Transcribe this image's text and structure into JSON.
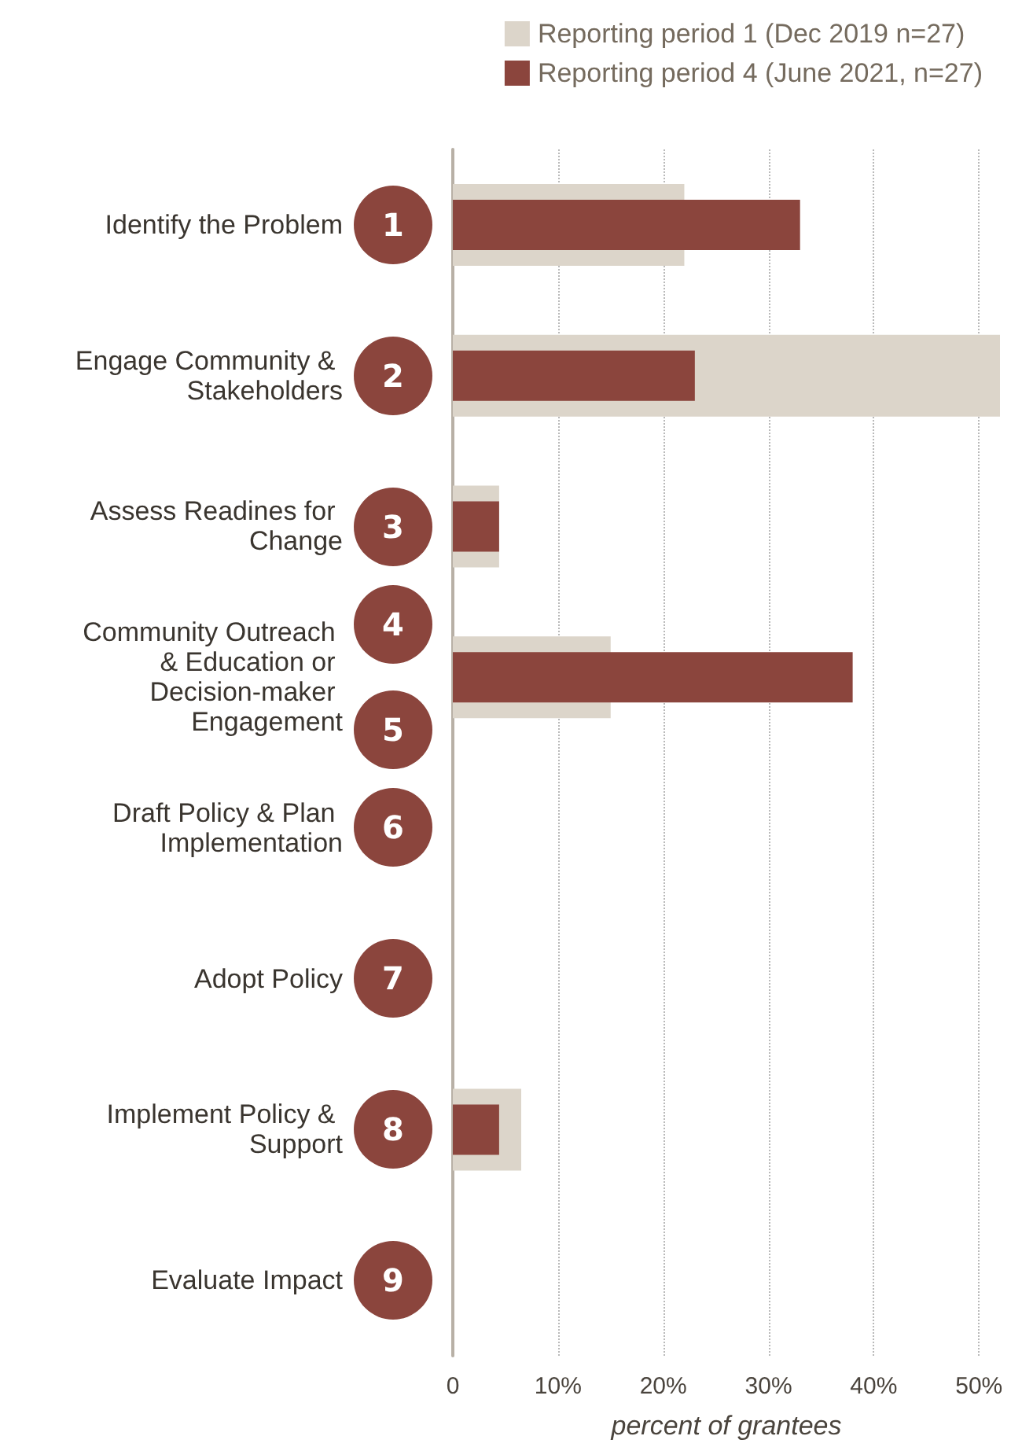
{
  "chart_data": {
    "type": "bar",
    "orientation": "horizontal",
    "categories": [
      "Identify the Problem",
      "Engage Community & Stakeholders",
      "Assess Readines for Change",
      "Community Outreach & Education or Decision-maker Engagement",
      "Draft Policy & Plan Implementation",
      "Adopt Policy",
      "Implement Policy & Support",
      "Evaluate Impact"
    ],
    "series": [
      {
        "name": "Reporting period 1 (Dec 2019 n=27)",
        "color": "#dcd5ca",
        "values": [
          22,
          52,
          4.4,
          15,
          0,
          0,
          6.5,
          0
        ]
      },
      {
        "name": "Reporting period 4 (June 2021, n=27)",
        "color": "#8b453d",
        "values": [
          33,
          23,
          4.4,
          38,
          0,
          0,
          4.4,
          0
        ]
      }
    ],
    "xlabel": "percent of grantees",
    "xlim": [
      0,
      52
    ],
    "xticks": [
      0,
      {
        "value": 10,
        "label": "10%"
      },
      {
        "value": 20,
        "label": "20%"
      },
      {
        "value": 30,
        "label": "30%"
      },
      {
        "value": 40,
        "label": "40%"
      },
      {
        "value": 50,
        "label": "50%"
      }
    ],
    "annotations": [
      "1",
      "2",
      "3",
      "4",
      "5",
      "6",
      "7",
      "8",
      "9"
    ],
    "grid": "x",
    "legend": "top right"
  }
}
